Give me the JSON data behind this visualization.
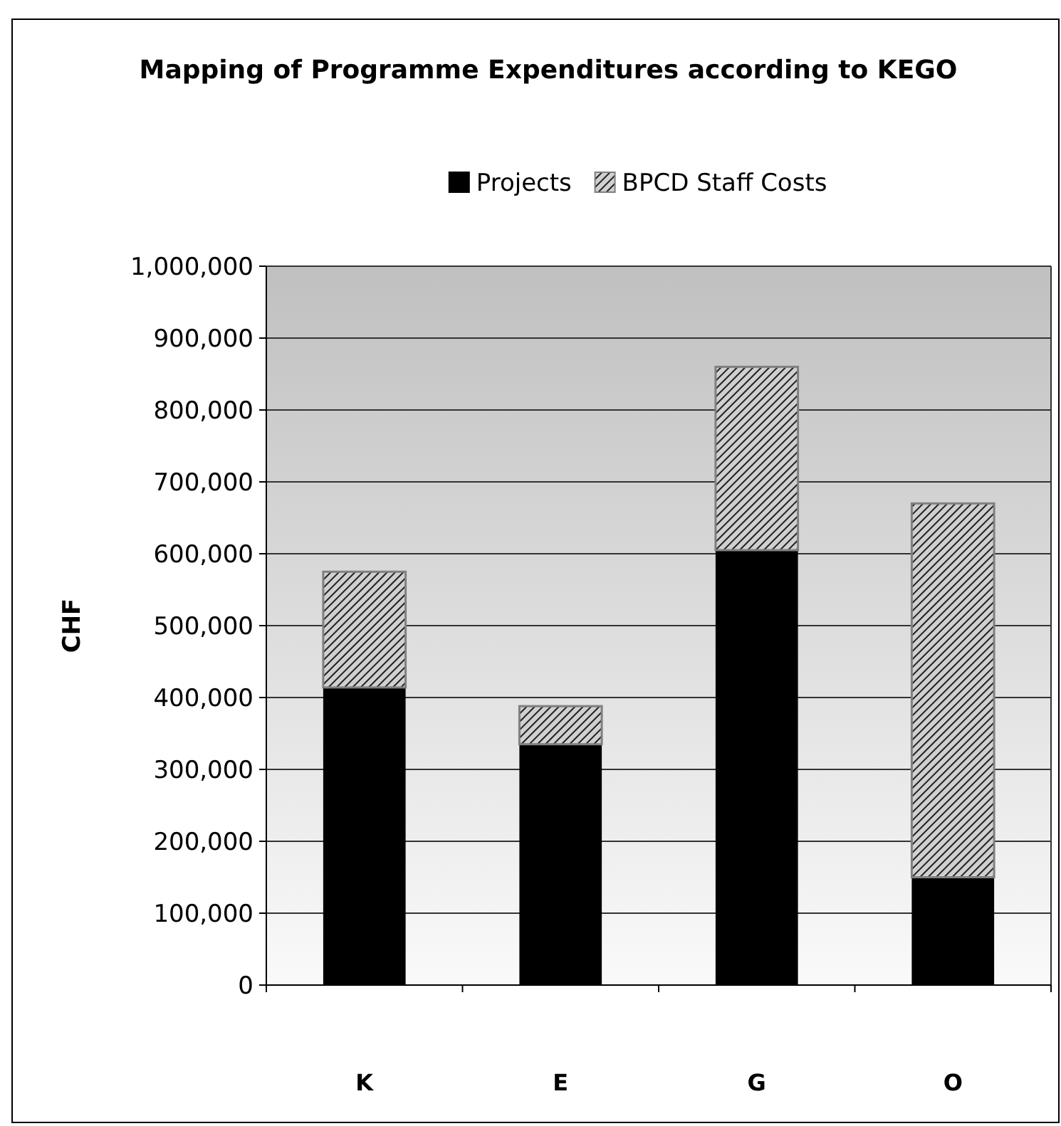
{
  "chart_data": {
    "type": "bar",
    "title": "Mapping of Programme Expenditures according to KEGO",
    "ylabel": "CHF",
    "categories": [
      "K",
      "E",
      "G",
      "O"
    ],
    "stacked": true,
    "legend": "top",
    "grid": "y",
    "ylim": [
      0,
      1000000
    ],
    "yticks": [
      {
        "value": 0,
        "label": "0"
      },
      {
        "value": 100000,
        "label": "100,000"
      },
      {
        "value": 200000,
        "label": "200,000"
      },
      {
        "value": 300000,
        "label": "300,000"
      },
      {
        "value": 400000,
        "label": "400,000"
      },
      {
        "value": 500000,
        "label": "500,000"
      },
      {
        "value": 600000,
        "label": "600,000"
      },
      {
        "value": 700000,
        "label": "700,000"
      },
      {
        "value": 800000,
        "label": "800,000"
      },
      {
        "value": 900000,
        "label": "900,000"
      },
      {
        "value": 1000000,
        "label": "1,000,000"
      }
    ],
    "series": [
      {
        "name": "Projects",
        "color": "#000000",
        "values": [
          414000,
          335000,
          605000,
          150000
        ]
      },
      {
        "name": "BPCD Staff Costs",
        "color": "#808080",
        "values": [
          161000,
          53000,
          255000,
          520000
        ]
      }
    ]
  }
}
